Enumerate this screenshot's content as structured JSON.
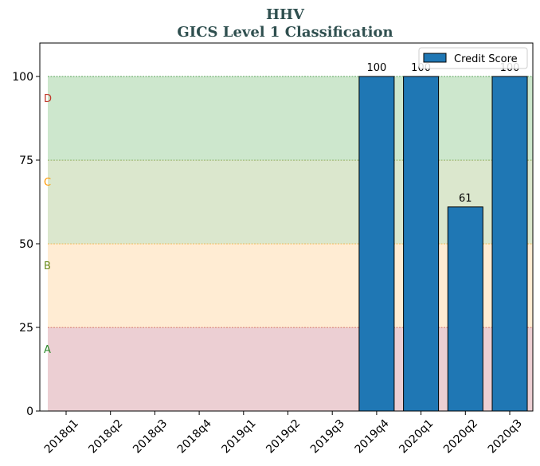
{
  "chart_data": {
    "type": "bar",
    "title": "HHV",
    "subtitle": "GICS Level 1 Classification",
    "categories": [
      "2018q1",
      "2018q2",
      "2018q3",
      "2018q4",
      "2019q1",
      "2019q2",
      "2019q3",
      "2019q4",
      "2020q1",
      "2020q2",
      "2020q3"
    ],
    "series": [
      {
        "name": "Credit Score",
        "values": [
          null,
          null,
          null,
          null,
          null,
          null,
          null,
          100,
          100,
          61,
          100
        ],
        "color": "#1f77b4"
      }
    ],
    "data_labels": [
      "",
      "",
      "",
      "",
      "",
      "",
      "",
      "100",
      "100",
      "61",
      "100"
    ],
    "ylim": [
      0,
      110
    ],
    "yticks": [
      0,
      25,
      50,
      75,
      100
    ],
    "xlabel": "",
    "ylabel": "",
    "legend_position": "top-right",
    "bands": [
      {
        "label": "A",
        "from": 0,
        "to": 25,
        "fill": "#d9a0a8",
        "line": "#c0392b",
        "label_color": "#2e8b2e"
      },
      {
        "label": "B",
        "from": 25,
        "to": 50,
        "fill": "#ffd9a8",
        "line": "#ff9900",
        "label_color": "#6b8e23"
      },
      {
        "label": "C",
        "from": 50,
        "to": 75,
        "fill": "#b8cf9c",
        "line": "#6b8e23",
        "label_color": "#ff9900"
      },
      {
        "label": "D",
        "from": 75,
        "to": 100,
        "fill": "#9ccf9c",
        "line": "#2e8b2e",
        "label_color": "#c0392b"
      }
    ]
  }
}
